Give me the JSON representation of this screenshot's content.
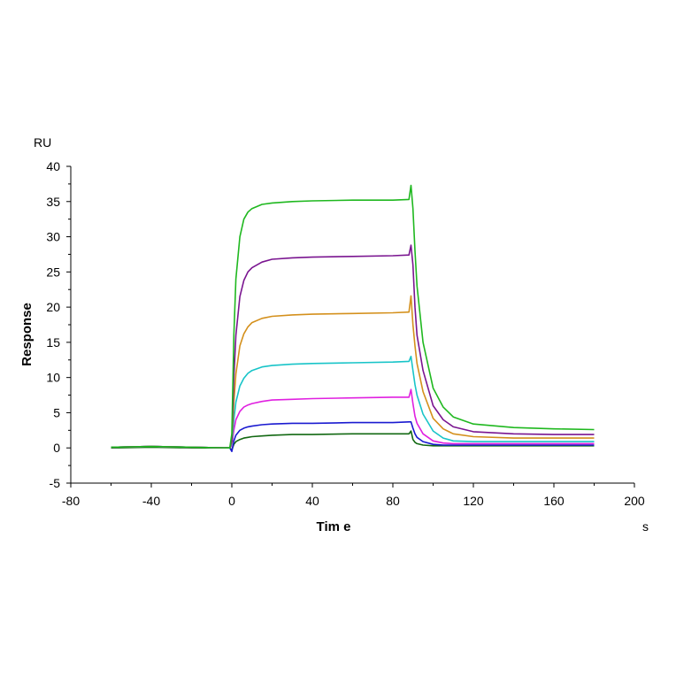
{
  "chart_data": {
    "type": "line",
    "title": "",
    "xlabel": "Tim e",
    "ylabel": "Response",
    "x_unit": "s",
    "y_unit": "RU",
    "xlim": [
      -80,
      200
    ],
    "ylim": [
      -5,
      40
    ],
    "x_ticks": [
      -80,
      -40,
      0,
      40,
      80,
      120,
      160,
      200
    ],
    "y_ticks": [
      -5,
      0,
      5,
      10,
      15,
      20,
      25,
      30,
      35,
      40
    ],
    "x_tick_labels": [
      "-80",
      "-40",
      "0",
      "40",
      "80",
      "120",
      "160",
      "200"
    ],
    "y_tick_labels": [
      "-5",
      "0",
      "5",
      "10",
      "15",
      "20",
      "25",
      "30",
      "35",
      "40"
    ],
    "grid": false,
    "legend": "none",
    "series": [
      {
        "color": "#1fb81f",
        "x": [
          -60,
          -40,
          -20,
          -1,
          0,
          1,
          2,
          4,
          6,
          8,
          10,
          15,
          20,
          30,
          40,
          60,
          80,
          88,
          89,
          90,
          91,
          92,
          95,
          100,
          105,
          110,
          120,
          140,
          160,
          180
        ],
        "y": [
          0.1,
          0.2,
          0.1,
          0.0,
          2.0,
          16.0,
          24.0,
          30.0,
          32.5,
          33.5,
          34.0,
          34.6,
          34.8,
          35.0,
          35.1,
          35.2,
          35.2,
          35.3,
          37.3,
          34.0,
          28.0,
          23.0,
          15.0,
          8.5,
          5.8,
          4.4,
          3.4,
          2.9,
          2.7,
          2.6
        ]
      },
      {
        "color": "#7a1590",
        "x": [
          -60,
          -40,
          -20,
          -1,
          0,
          1,
          2,
          4,
          6,
          8,
          10,
          15,
          20,
          30,
          40,
          60,
          80,
          88,
          89,
          90,
          91,
          92,
          95,
          100,
          105,
          110,
          120,
          140,
          160,
          180
        ],
        "y": [
          0.1,
          0.2,
          0.1,
          0.0,
          1.0,
          10.0,
          16.0,
          21.5,
          23.8,
          25.0,
          25.6,
          26.4,
          26.8,
          27.0,
          27.1,
          27.2,
          27.3,
          27.4,
          28.8,
          26.0,
          20.0,
          16.0,
          11.0,
          6.0,
          4.0,
          3.0,
          2.3,
          2.0,
          1.9,
          1.9
        ]
      },
      {
        "color": "#d4901c",
        "x": [
          -60,
          -40,
          -20,
          -1,
          0,
          1,
          2,
          4,
          6,
          8,
          10,
          15,
          20,
          30,
          40,
          60,
          80,
          88,
          89,
          90,
          91,
          92,
          95,
          100,
          105,
          110,
          120,
          140,
          160,
          180
        ],
        "y": [
          0.1,
          0.2,
          0.1,
          0.0,
          0.8,
          6.5,
          10.5,
          14.5,
          16.2,
          17.2,
          17.8,
          18.4,
          18.7,
          18.9,
          19.0,
          19.1,
          19.2,
          19.3,
          21.6,
          17.5,
          14.5,
          12.0,
          8.0,
          4.2,
          2.7,
          2.0,
          1.6,
          1.4,
          1.4,
          1.4
        ]
      },
      {
        "color": "#18c4c8",
        "x": [
          -60,
          -40,
          -20,
          -1,
          0,
          1,
          2,
          4,
          6,
          8,
          10,
          15,
          20,
          30,
          40,
          60,
          80,
          88,
          89,
          90,
          91,
          92,
          95,
          100,
          105,
          110,
          120,
          140,
          160,
          180
        ],
        "y": [
          0.1,
          0.2,
          0.1,
          0.0,
          0.5,
          4.0,
          6.5,
          8.8,
          9.9,
          10.6,
          11.0,
          11.5,
          11.7,
          11.9,
          12.0,
          12.1,
          12.2,
          12.3,
          13.0,
          11.0,
          9.0,
          7.5,
          4.8,
          2.4,
          1.4,
          1.0,
          0.9,
          0.9,
          0.9,
          0.9
        ]
      },
      {
        "color": "#e020e0",
        "x": [
          -60,
          -40,
          -20,
          -1,
          0,
          1,
          2,
          4,
          6,
          8,
          10,
          15,
          20,
          30,
          40,
          60,
          80,
          88,
          89,
          90,
          91,
          92,
          95,
          100,
          105,
          110,
          120,
          140,
          160,
          180
        ],
        "y": [
          0.1,
          0.2,
          0.1,
          0.0,
          0.3,
          2.5,
          4.0,
          5.2,
          5.8,
          6.1,
          6.3,
          6.6,
          6.8,
          6.9,
          7.0,
          7.1,
          7.2,
          7.2,
          8.3,
          6.3,
          4.5,
          3.5,
          2.0,
          1.0,
          0.7,
          0.6,
          0.6,
          0.6,
          0.6,
          0.6
        ]
      },
      {
        "color": "#1a1ad0",
        "x": [
          -60,
          -40,
          -20,
          -1,
          0,
          1,
          2,
          4,
          6,
          8,
          10,
          15,
          20,
          30,
          40,
          60,
          80,
          88,
          89,
          90,
          91,
          92,
          95,
          100,
          105,
          110,
          120,
          140,
          160,
          180
        ],
        "y": [
          0.1,
          0.2,
          0.1,
          0.0,
          -0.5,
          1.0,
          1.8,
          2.5,
          2.8,
          3.0,
          3.1,
          3.3,
          3.4,
          3.5,
          3.5,
          3.6,
          3.6,
          3.7,
          3.7,
          2.8,
          2.0,
          1.5,
          0.9,
          0.5,
          0.4,
          0.4,
          0.4,
          0.4,
          0.4,
          0.4
        ]
      },
      {
        "color": "#126812",
        "x": [
          -60,
          -40,
          -20,
          -1,
          0,
          1,
          2,
          4,
          6,
          8,
          10,
          15,
          20,
          30,
          40,
          60,
          80,
          88,
          89,
          90,
          91,
          92,
          95,
          100,
          105,
          110,
          120,
          140,
          160,
          180
        ],
        "y": [
          0.0,
          0.1,
          0.0,
          0.0,
          -0.3,
          0.5,
          0.9,
          1.2,
          1.4,
          1.5,
          1.6,
          1.7,
          1.8,
          1.9,
          1.9,
          2.0,
          2.0,
          2.0,
          2.4,
          1.2,
          0.8,
          0.6,
          0.4,
          0.3,
          0.3,
          0.3,
          0.3,
          0.3,
          0.3,
          0.3
        ]
      }
    ]
  }
}
